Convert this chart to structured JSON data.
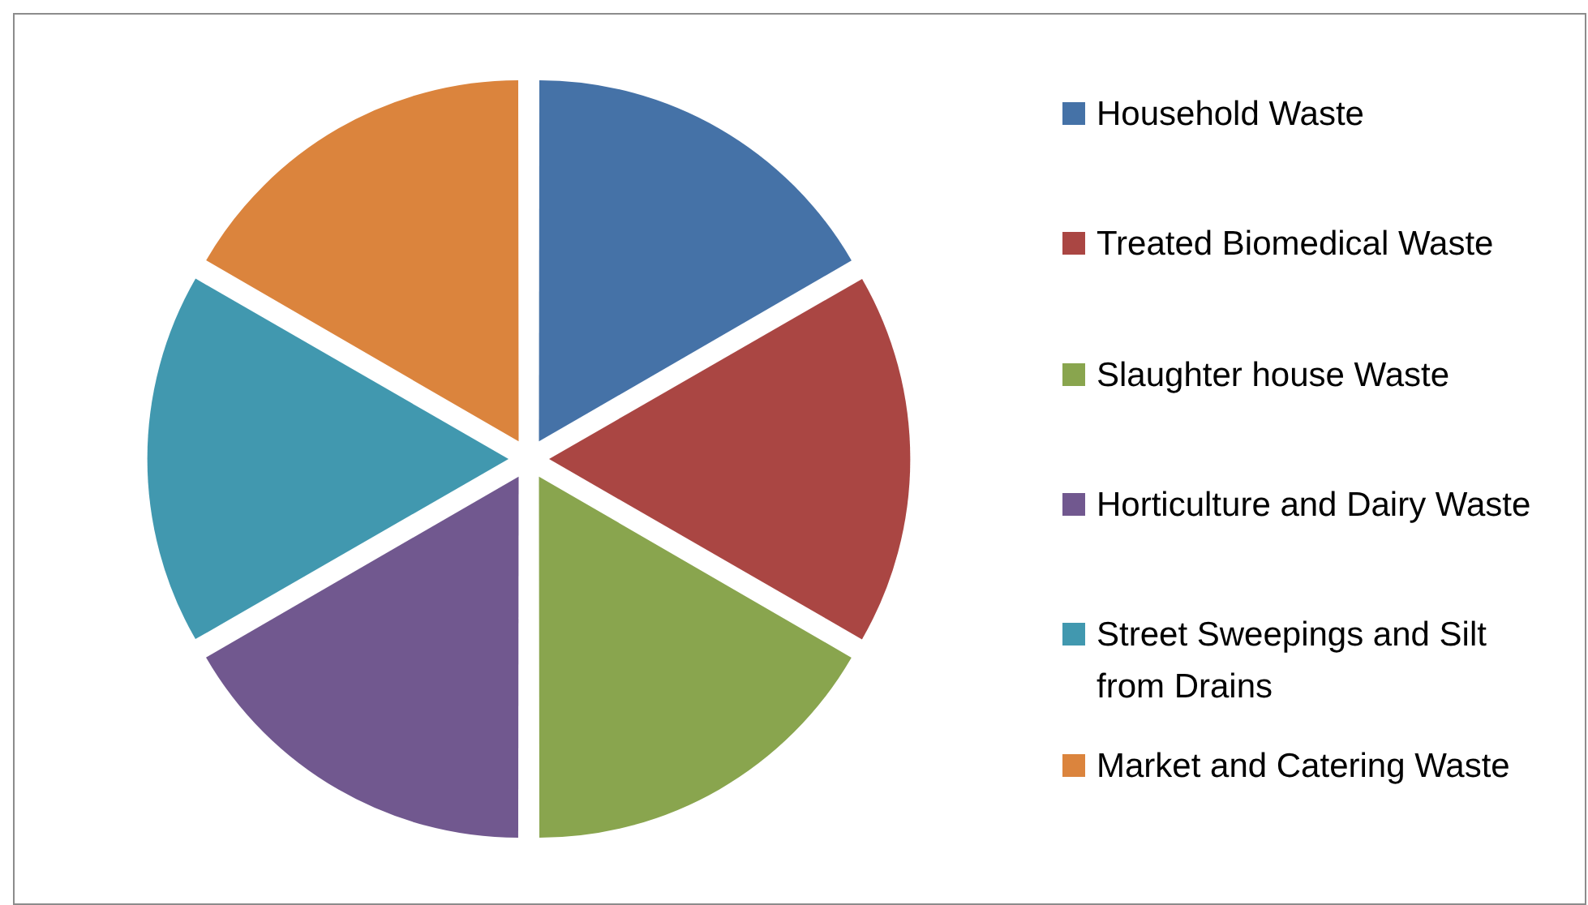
{
  "chart_data": {
    "type": "pie",
    "categories": [
      "Household Waste",
      "Treated Biomedical Waste",
      "Slaughter house Waste",
      "Horticulture and Dairy Waste",
      "Street Sweepings and Silt from Drains",
      "Market and Catering Waste"
    ],
    "values": [
      16.67,
      16.67,
      16.66,
      16.67,
      16.67,
      16.66
    ],
    "colors": [
      "#4572a7",
      "#aa4643",
      "#89a54e",
      "#71588f",
      "#4198af",
      "#db843d"
    ],
    "legend": "right"
  }
}
